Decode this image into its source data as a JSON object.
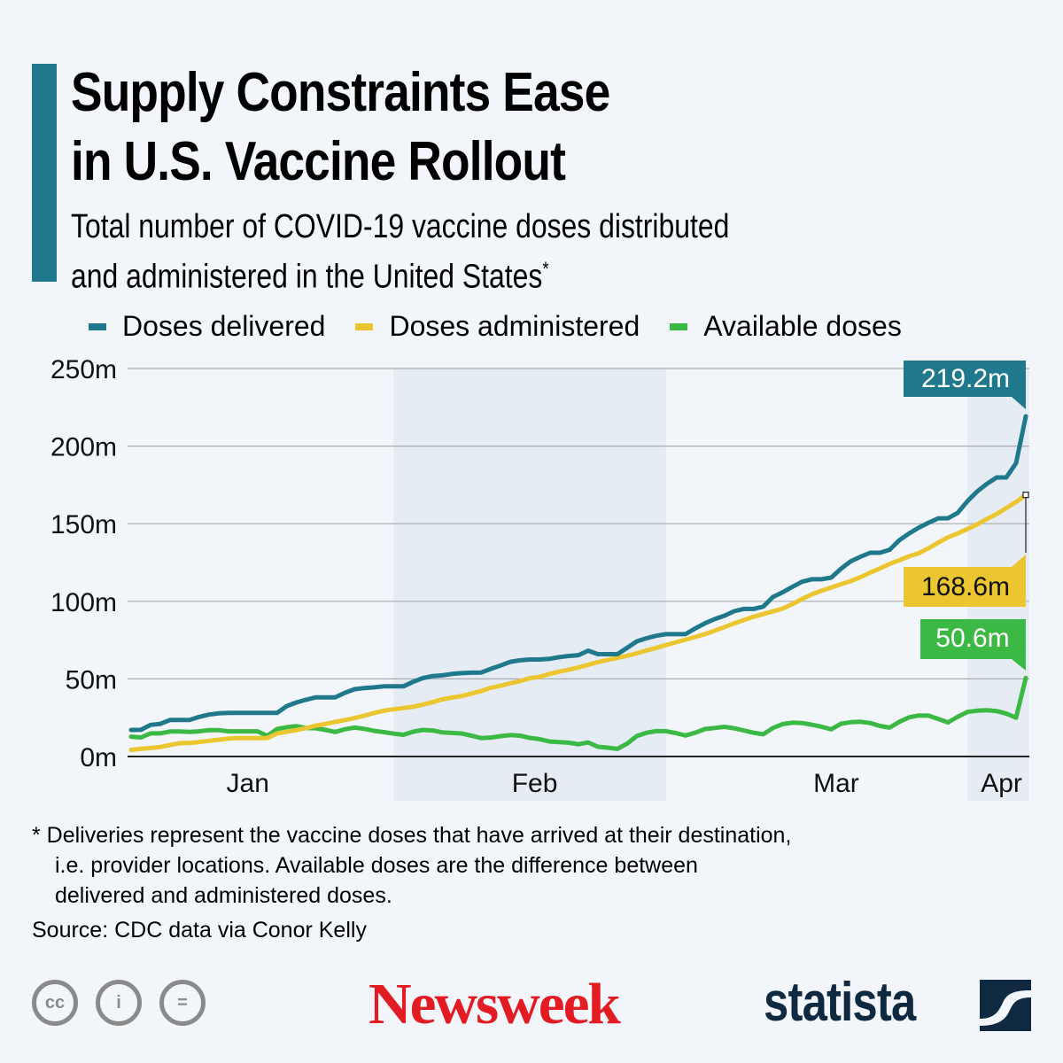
{
  "header": {
    "title_line1": "Supply Constraints Ease",
    "title_line2": "in U.S. Vaccine Rollout",
    "subtitle_line1": "Total number of COVID-19 vaccine doses distributed",
    "subtitle_line2": "and administered in the United States",
    "subtitle_mark": "*"
  },
  "colors": {
    "accent": "#1f788c",
    "delivered": "#1f788c",
    "administered": "#ecc630",
    "available": "#3cb944",
    "band": "#e6ecf3",
    "grid": "#a8acb2",
    "newsweek": "#e31b23",
    "statista": "#0f2a40"
  },
  "chart_data": {
    "type": "line",
    "title": "Supply Constraints Ease in U.S. Vaccine Rollout",
    "xlabel": "",
    "ylabel": "",
    "ylim": [
      0,
      250
    ],
    "y_unit": "million doses",
    "yticks": [
      "0m",
      "50m",
      "100m",
      "150m",
      "200m",
      "250m"
    ],
    "ytick_values": [
      0,
      50,
      100,
      150,
      200,
      250
    ],
    "xticks": [
      "Jan",
      "Feb",
      "Mar",
      "Apr"
    ],
    "x_range_days": [
      4,
      96
    ],
    "month_starts_days": {
      "Feb": 31,
      "Mar": 59,
      "Apr": 90
    },
    "xtick_positions_days": [
      16,
      45.5,
      76.5,
      93.5
    ],
    "grid": true,
    "legend_position": "top",
    "x_days": [
      4,
      5,
      6,
      7,
      8,
      9,
      10,
      11,
      12,
      13,
      14,
      15,
      16,
      17,
      18,
      19,
      20,
      21,
      22,
      23,
      24,
      25,
      26,
      27,
      28,
      29,
      30,
      31,
      32,
      33,
      34,
      35,
      36,
      37,
      38,
      39,
      40,
      41,
      42,
      43,
      44,
      45,
      46,
      47,
      48,
      49,
      50,
      51,
      52,
      53,
      54,
      55,
      56,
      57,
      58,
      59,
      60,
      61,
      62,
      63,
      64,
      65,
      66,
      67,
      68,
      69,
      70,
      71,
      72,
      73,
      74,
      75,
      76,
      77,
      78,
      79,
      80,
      81,
      82,
      83,
      84,
      85,
      86,
      87,
      88,
      89,
      90,
      91,
      92,
      93,
      94,
      95,
      96
    ],
    "series": [
      {
        "name": "Doses delivered",
        "color": "#1f788c",
        "end_label": "219.2m",
        "values": [
          17.1,
          17.2,
          20.4,
          21.0,
          23.5,
          23.5,
          23.6,
          25.5,
          27.0,
          27.8,
          28.1,
          28.1,
          28.1,
          28.1,
          28.1,
          28.1,
          32.5,
          34.8,
          36.6,
          38.1,
          38.1,
          38.1,
          41.1,
          43.4,
          44.1,
          44.6,
          45.2,
          45.2,
          45.2,
          48.1,
          50.5,
          51.8,
          52.3,
          53.2,
          53.7,
          54.0,
          54.1,
          56.5,
          58.7,
          61.0,
          62.0,
          62.5,
          62.5,
          62.9,
          64.0,
          64.8,
          65.3,
          68.2,
          65.9,
          65.9,
          65.9,
          70.0,
          74.2,
          76.2,
          77.8,
          78.8,
          78.8,
          78.8,
          82.5,
          85.8,
          88.5,
          90.7,
          93.6,
          95.1,
          95.1,
          96.6,
          102.8,
          105.8,
          109.3,
          112.6,
          114.2,
          114.2,
          115.3,
          121.0,
          125.8,
          128.7,
          131.3,
          131.3,
          133.2,
          139.4,
          143.7,
          147.5,
          150.6,
          153.5,
          153.5,
          157.0,
          164.5,
          170.8,
          175.7,
          179.8,
          179.8,
          189.0,
          219.2
        ]
      },
      {
        "name": "Doses administered",
        "color": "#ecc630",
        "end_label": "168.6m",
        "values": [
          4.3,
          4.9,
          5.5,
          6.1,
          7.4,
          8.6,
          8.8,
          9.3,
          10.1,
          10.8,
          11.6,
          11.9,
          11.9,
          11.9,
          11.9,
          14.8,
          15.9,
          17.0,
          18.3,
          19.9,
          21.0,
          22.3,
          23.5,
          24.8,
          26.3,
          28.1,
          29.5,
          30.5,
          31.2,
          32.1,
          33.4,
          35.0,
          36.8,
          38.0,
          38.9,
          40.6,
          42.2,
          44.3,
          45.6,
          47.2,
          48.6,
          50.5,
          51.3,
          53.2,
          54.7,
          55.9,
          57.4,
          59.1,
          60.8,
          62.2,
          63.5,
          64.9,
          66.5,
          68.3,
          70.0,
          71.8,
          73.6,
          75.3,
          77.0,
          78.8,
          81.0,
          83.4,
          85.8,
          87.9,
          90.0,
          91.8,
          93.5,
          95.3,
          98.2,
          101.5,
          104.5,
          106.8,
          108.9,
          111.0,
          113.0,
          115.5,
          118.5,
          121.2,
          124.1,
          126.5,
          129.0,
          131.0,
          134.2,
          137.8,
          141.2,
          143.7,
          146.6,
          149.5,
          153.1,
          156.2,
          160.1,
          164.0,
          168.6
        ]
      },
      {
        "name": "Available doses",
        "color": "#3cb944",
        "end_label": "50.6m",
        "values": [
          12.8,
          12.3,
          14.9,
          14.9,
          16.1,
          16.1,
          15.8,
          16.2,
          17.0,
          17.0,
          16.2,
          16.2,
          16.2,
          16.2,
          13.3,
          17.7,
          18.9,
          19.6,
          18.3,
          18.2,
          17.1,
          15.8,
          17.6,
          18.6,
          17.8,
          16.5,
          15.7,
          14.7,
          14.0,
          16.0,
          17.1,
          16.8,
          15.5,
          15.2,
          14.8,
          13.4,
          11.9,
          12.2,
          13.1,
          13.8,
          13.4,
          12.0,
          11.2,
          9.7,
          9.3,
          8.9,
          7.9,
          9.1,
          6.3,
          5.7,
          4.9,
          8.3,
          13.2,
          15.3,
          16.3,
          16.3,
          15.1,
          13.5,
          15.3,
          17.7,
          18.4,
          19.1,
          18.2,
          16.8,
          15.3,
          14.3,
          18.4,
          20.9,
          21.8,
          21.6,
          20.5,
          19.2,
          17.5,
          21.1,
          22.1,
          22.4,
          21.6,
          19.7,
          18.6,
          22.4,
          25.2,
          26.4,
          26.3,
          24.2,
          22.0,
          25.6,
          28.7,
          29.5,
          29.8,
          29.3,
          27.6,
          25.0,
          50.6
        ]
      }
    ]
  },
  "footnote": {
    "line1": "* Deliveries represent the vaccine doses that have arrived at their destination,",
    "line2": "i.e. provider locations. Available doses are the difference between",
    "line3": "delivered and administered doses."
  },
  "source": "Source: CDC data via Conor Kelly",
  "branding": {
    "cc_icons": [
      "cc-icon",
      "attribution-icon",
      "no-derivatives-icon"
    ],
    "cc_glyphs": [
      "cc",
      "i",
      "="
    ],
    "newsweek": "Newsweek",
    "statista": "statista"
  }
}
